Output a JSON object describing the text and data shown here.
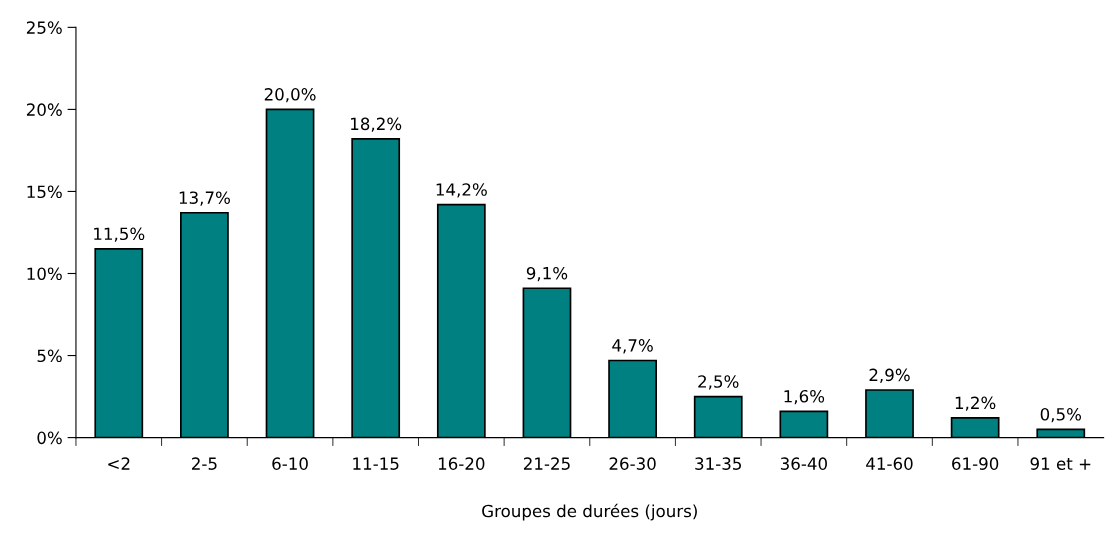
{
  "chart_data": {
    "type": "bar",
    "xlabel": "Groupes de durées (jours)",
    "categories": [
      "<2",
      "2-5",
      "6-10",
      "11-15",
      "16-20",
      "21-25",
      "26-30",
      "31-35",
      "36-40",
      "41-60",
      "61-90",
      "91 et +"
    ],
    "values": [
      11.5,
      13.7,
      20.0,
      18.2,
      14.2,
      9.1,
      4.7,
      2.5,
      1.6,
      2.9,
      1.2,
      0.5
    ],
    "value_labels": [
      "11,5%",
      "13,7%",
      "20,0%",
      "18,2%",
      "14,2%",
      "9,1%",
      "4,7%",
      "2,5%",
      "1,6%",
      "2,9%",
      "1,2%",
      "0,5%"
    ],
    "color": "#008080",
    "ylim": [
      0,
      25
    ],
    "yticks": [
      {
        "value": 0,
        "label": "0%"
      },
      {
        "value": 5,
        "label": "5%"
      },
      {
        "value": 10,
        "label": "10%"
      },
      {
        "value": 15,
        "label": "15%"
      },
      {
        "value": 20,
        "label": "20%"
      },
      {
        "value": 25,
        "label": "25%"
      }
    ],
    "grid": false
  }
}
